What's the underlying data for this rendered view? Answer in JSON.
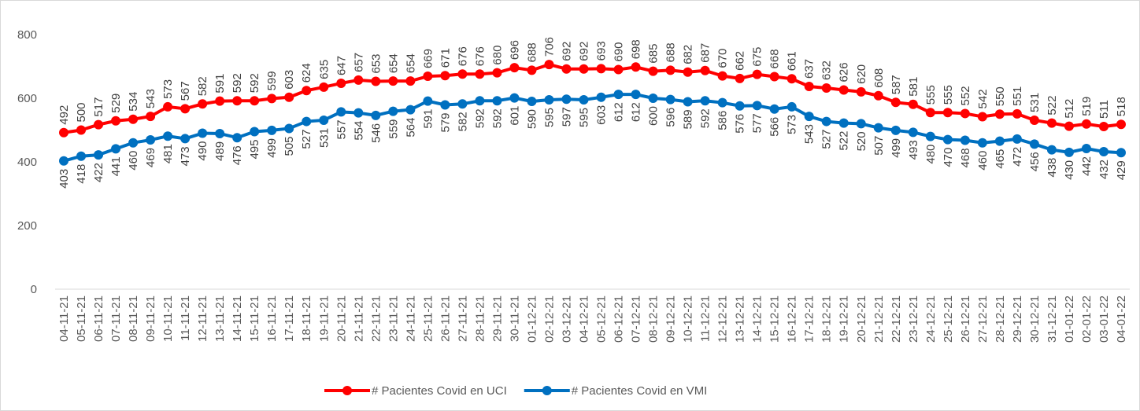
{
  "chart_data": {
    "type": "line",
    "x": [
      "04-11-21",
      "05-11-21",
      "06-11-21",
      "07-11-21",
      "08-11-21",
      "09-11-21",
      "10-11-21",
      "11-11-21",
      "12-11-21",
      "13-11-21",
      "14-11-21",
      "15-11-21",
      "16-11-21",
      "17-11-21",
      "18-11-21",
      "19-11-21",
      "20-11-21",
      "21-11-21",
      "22-11-21",
      "23-11-21",
      "24-11-21",
      "25-11-21",
      "26-11-21",
      "27-11-21",
      "28-11-21",
      "29-11-21",
      "30-11-21",
      "01-12-21",
      "02-12-21",
      "03-12-21",
      "04-12-21",
      "05-12-21",
      "06-12-21",
      "07-12-21",
      "08-12-21",
      "09-12-21",
      "10-12-21",
      "11-12-21",
      "12-12-21",
      "13-12-21",
      "14-12-21",
      "15-12-21",
      "16-12-21",
      "17-12-21",
      "18-12-21",
      "19-12-21",
      "20-12-21",
      "21-12-21",
      "22-12-21",
      "23-12-21",
      "24-12-21",
      "25-12-21",
      "26-12-21",
      "27-12-21",
      "28-12-21",
      "29-12-21",
      "30-12-21",
      "31-12-21",
      "01-01-22",
      "02-01-22",
      "03-01-22",
      "04-01-22"
    ],
    "series": [
      {
        "name": "# Pacientes Covid en UCI",
        "color": "#ff0000",
        "label_position": "above",
        "values": [
          492,
          500,
          517,
          529,
          534,
          543,
          573,
          567,
          582,
          591,
          592,
          592,
          599,
          603,
          624,
          635,
          647,
          657,
          653,
          654,
          654,
          669,
          671,
          676,
          676,
          680,
          696,
          688,
          706,
          692,
          692,
          693,
          690,
          698,
          685,
          688,
          682,
          687,
          670,
          662,
          675,
          668,
          661,
          637,
          632,
          626,
          620,
          608,
          587,
          581,
          555,
          555,
          552,
          542,
          550,
          551,
          531,
          522,
          512,
          519,
          511,
          518
        ]
      },
      {
        "name": "# Pacientes Covid en VMI",
        "color": "#0070c0",
        "label_position": "below",
        "values": [
          403,
          418,
          422,
          441,
          460,
          469,
          481,
          473,
          490,
          489,
          476,
          495,
          499,
          505,
          527,
          531,
          557,
          554,
          546,
          559,
          564,
          591,
          579,
          582,
          592,
          592,
          601,
          590,
          595,
          597,
          595,
          603,
          612,
          612,
          600,
          596,
          589,
          592,
          586,
          576,
          577,
          566,
          573,
          543,
          527,
          522,
          520,
          507,
          499,
          493,
          480,
          470,
          468,
          460,
          465,
          472,
          456,
          438,
          430,
          442,
          432,
          429
        ]
      }
    ],
    "ylim": [
      0,
      800
    ],
    "yticks": [
      0,
      200,
      400,
      600,
      800
    ],
    "grid": false,
    "legend": "bottom"
  }
}
